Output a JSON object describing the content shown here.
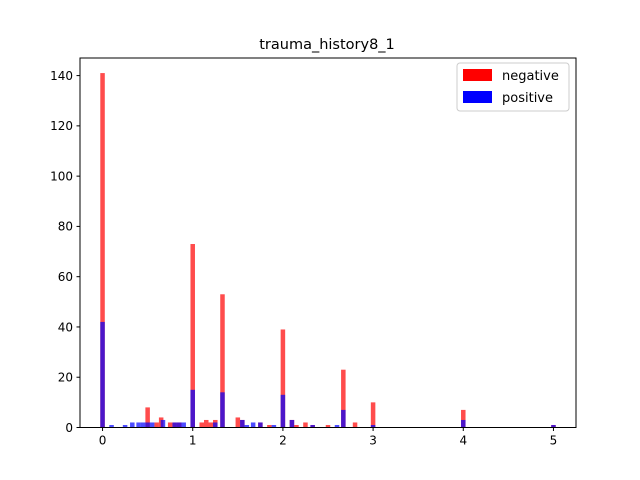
{
  "chart_data": {
    "type": "bar",
    "title": "trauma_history8_1",
    "xlabel": "",
    "ylabel": "",
    "xlim": [
      -0.25,
      5.25
    ],
    "ylim": [
      0,
      147
    ],
    "x_ticks": [
      "0",
      "1",
      "2",
      "3",
      "4",
      "5"
    ],
    "y_ticks": [
      "0",
      "20",
      "40",
      "60",
      "80",
      "100",
      "120",
      "140"
    ],
    "bin_width": 0.05,
    "legend": {
      "position": "top-right"
    },
    "series": [
      {
        "name": "negative",
        "color": "#ff0000",
        "points": [
          {
            "x": 0.0,
            "y": 141
          },
          {
            "x": 0.5,
            "y": 8
          },
          {
            "x": 0.6,
            "y": 2
          },
          {
            "x": 0.65,
            "y": 4
          },
          {
            "x": 0.75,
            "y": 2
          },
          {
            "x": 0.8,
            "y": 2
          },
          {
            "x": 0.85,
            "y": 2
          },
          {
            "x": 1.0,
            "y": 73
          },
          {
            "x": 1.1,
            "y": 2
          },
          {
            "x": 1.15,
            "y": 3
          },
          {
            "x": 1.2,
            "y": 2
          },
          {
            "x": 1.25,
            "y": 3
          },
          {
            "x": 1.33,
            "y": 53
          },
          {
            "x": 1.5,
            "y": 4
          },
          {
            "x": 1.55,
            "y": 3
          },
          {
            "x": 1.75,
            "y": 2
          },
          {
            "x": 1.85,
            "y": 1
          },
          {
            "x": 2.0,
            "y": 39
          },
          {
            "x": 2.1,
            "y": 3
          },
          {
            "x": 2.15,
            "y": 1
          },
          {
            "x": 2.25,
            "y": 2
          },
          {
            "x": 2.33,
            "y": 1
          },
          {
            "x": 2.5,
            "y": 1
          },
          {
            "x": 2.67,
            "y": 23
          },
          {
            "x": 2.8,
            "y": 2
          },
          {
            "x": 3.0,
            "y": 10
          },
          {
            "x": 4.0,
            "y": 7
          },
          {
            "x": 5.0,
            "y": 1
          }
        ]
      },
      {
        "name": "positive",
        "color": "#0000ff",
        "points": [
          {
            "x": 0.0,
            "y": 42
          },
          {
            "x": 0.1,
            "y": 1
          },
          {
            "x": 0.25,
            "y": 1
          },
          {
            "x": 0.33,
            "y": 2
          },
          {
            "x": 0.4,
            "y": 2
          },
          {
            "x": 0.45,
            "y": 2
          },
          {
            "x": 0.5,
            "y": 2
          },
          {
            "x": 0.55,
            "y": 2
          },
          {
            "x": 0.67,
            "y": 3
          },
          {
            "x": 0.8,
            "y": 2
          },
          {
            "x": 0.85,
            "y": 2
          },
          {
            "x": 0.9,
            "y": 2
          },
          {
            "x": 1.0,
            "y": 15
          },
          {
            "x": 1.25,
            "y": 2
          },
          {
            "x": 1.33,
            "y": 14
          },
          {
            "x": 1.55,
            "y": 3
          },
          {
            "x": 1.6,
            "y": 1
          },
          {
            "x": 1.67,
            "y": 2
          },
          {
            "x": 1.75,
            "y": 2
          },
          {
            "x": 1.9,
            "y": 1
          },
          {
            "x": 2.0,
            "y": 13
          },
          {
            "x": 2.1,
            "y": 3
          },
          {
            "x": 2.33,
            "y": 1
          },
          {
            "x": 2.6,
            "y": 1
          },
          {
            "x": 2.67,
            "y": 7
          },
          {
            "x": 3.0,
            "y": 1
          },
          {
            "x": 4.0,
            "y": 3
          },
          {
            "x": 5.0,
            "y": 1
          }
        ]
      }
    ]
  }
}
